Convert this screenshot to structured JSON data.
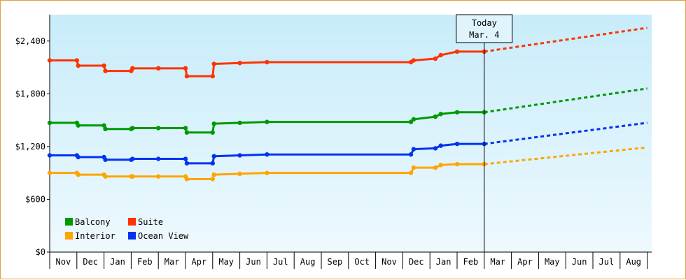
{
  "chart_data": {
    "type": "line",
    "title": "",
    "xlabel": "",
    "ylabel": "",
    "ylim": [
      0,
      2700
    ],
    "y_ticks": [
      0,
      600,
      1200,
      1800,
      2400
    ],
    "y_tick_labels": [
      "$0",
      "$600",
      "$1,200",
      "$1,800",
      "$2,400"
    ],
    "x_tick_labels": [
      "Nov",
      "Dec",
      "Jan",
      "Feb",
      "Mar",
      "Apr",
      "May",
      "Jun",
      "Jul",
      "Aug",
      "Sep",
      "Oct",
      "Nov",
      "Dec",
      "Jan",
      "Feb",
      "Mar",
      "Apr",
      "May",
      "Jun",
      "Jul",
      "Aug"
    ],
    "background": "gradient light blue (top) to very light blue (bottom)",
    "legend_placement": "bottom-left",
    "today_marker": {
      "label_line1": "Today",
      "label_line2": "Mar. 4",
      "x": 16.0
    },
    "forecast_end_x": 22.0,
    "series": [
      {
        "name": "Suite",
        "color": "#ff3300",
        "history": [
          [
            0.0,
            2180
          ],
          [
            1.0,
            2180
          ],
          [
            1.05,
            2120
          ],
          [
            2.0,
            2120
          ],
          [
            2.05,
            2060
          ],
          [
            3.0,
            2060
          ],
          [
            3.05,
            2090
          ],
          [
            4.0,
            2090
          ],
          [
            5.0,
            2090
          ],
          [
            5.05,
            2000
          ],
          [
            6.0,
            2000
          ],
          [
            6.05,
            2140
          ],
          [
            7.0,
            2150
          ],
          [
            8.0,
            2160
          ],
          [
            13.3,
            2160
          ],
          [
            13.4,
            2180
          ],
          [
            14.2,
            2200
          ],
          [
            14.4,
            2240
          ],
          [
            15.0,
            2280
          ],
          [
            16.0,
            2280
          ]
        ],
        "forecast_end": 2550
      },
      {
        "name": "Balcony",
        "color": "#009900",
        "history": [
          [
            0.0,
            1470
          ],
          [
            1.0,
            1470
          ],
          [
            1.05,
            1440
          ],
          [
            2.0,
            1440
          ],
          [
            2.05,
            1400
          ],
          [
            3.0,
            1400
          ],
          [
            3.05,
            1410
          ],
          [
            4.0,
            1410
          ],
          [
            5.0,
            1410
          ],
          [
            5.05,
            1360
          ],
          [
            6.0,
            1360
          ],
          [
            6.05,
            1460
          ],
          [
            7.0,
            1470
          ],
          [
            8.0,
            1480
          ],
          [
            13.3,
            1480
          ],
          [
            13.4,
            1510
          ],
          [
            14.2,
            1540
          ],
          [
            14.4,
            1570
          ],
          [
            15.0,
            1590
          ],
          [
            16.0,
            1590
          ]
        ],
        "forecast_end": 1860
      },
      {
        "name": "Ocean View",
        "color": "#0033ee",
        "history": [
          [
            0.0,
            1100
          ],
          [
            1.0,
            1100
          ],
          [
            1.05,
            1080
          ],
          [
            2.0,
            1080
          ],
          [
            2.05,
            1050
          ],
          [
            3.0,
            1050
          ],
          [
            3.05,
            1060
          ],
          [
            4.0,
            1060
          ],
          [
            5.0,
            1060
          ],
          [
            5.05,
            1010
          ],
          [
            6.0,
            1010
          ],
          [
            6.05,
            1090
          ],
          [
            7.0,
            1100
          ],
          [
            8.0,
            1110
          ],
          [
            13.3,
            1110
          ],
          [
            13.4,
            1170
          ],
          [
            14.2,
            1180
          ],
          [
            14.4,
            1210
          ],
          [
            15.0,
            1230
          ],
          [
            16.0,
            1230
          ]
        ],
        "forecast_end": 1470
      },
      {
        "name": "Interior",
        "color": "#ffa500",
        "history": [
          [
            0.0,
            900
          ],
          [
            1.0,
            900
          ],
          [
            1.05,
            880
          ],
          [
            2.0,
            880
          ],
          [
            2.05,
            860
          ],
          [
            3.0,
            860
          ],
          [
            3.05,
            860
          ],
          [
            4.0,
            860
          ],
          [
            5.0,
            860
          ],
          [
            5.05,
            830
          ],
          [
            6.0,
            830
          ],
          [
            6.05,
            880
          ],
          [
            7.0,
            890
          ],
          [
            8.0,
            900
          ],
          [
            13.3,
            900
          ],
          [
            13.4,
            960
          ],
          [
            14.2,
            960
          ],
          [
            14.4,
            990
          ],
          [
            15.0,
            1000
          ],
          [
            16.0,
            1000
          ]
        ],
        "forecast_end": 1190
      }
    ],
    "legend": [
      {
        "name": "Balcony",
        "color": "#009900"
      },
      {
        "name": "Suite",
        "color": "#ff3300"
      },
      {
        "name": "Interior",
        "color": "#ffa500"
      },
      {
        "name": "Ocean View",
        "color": "#0033ee"
      }
    ]
  }
}
